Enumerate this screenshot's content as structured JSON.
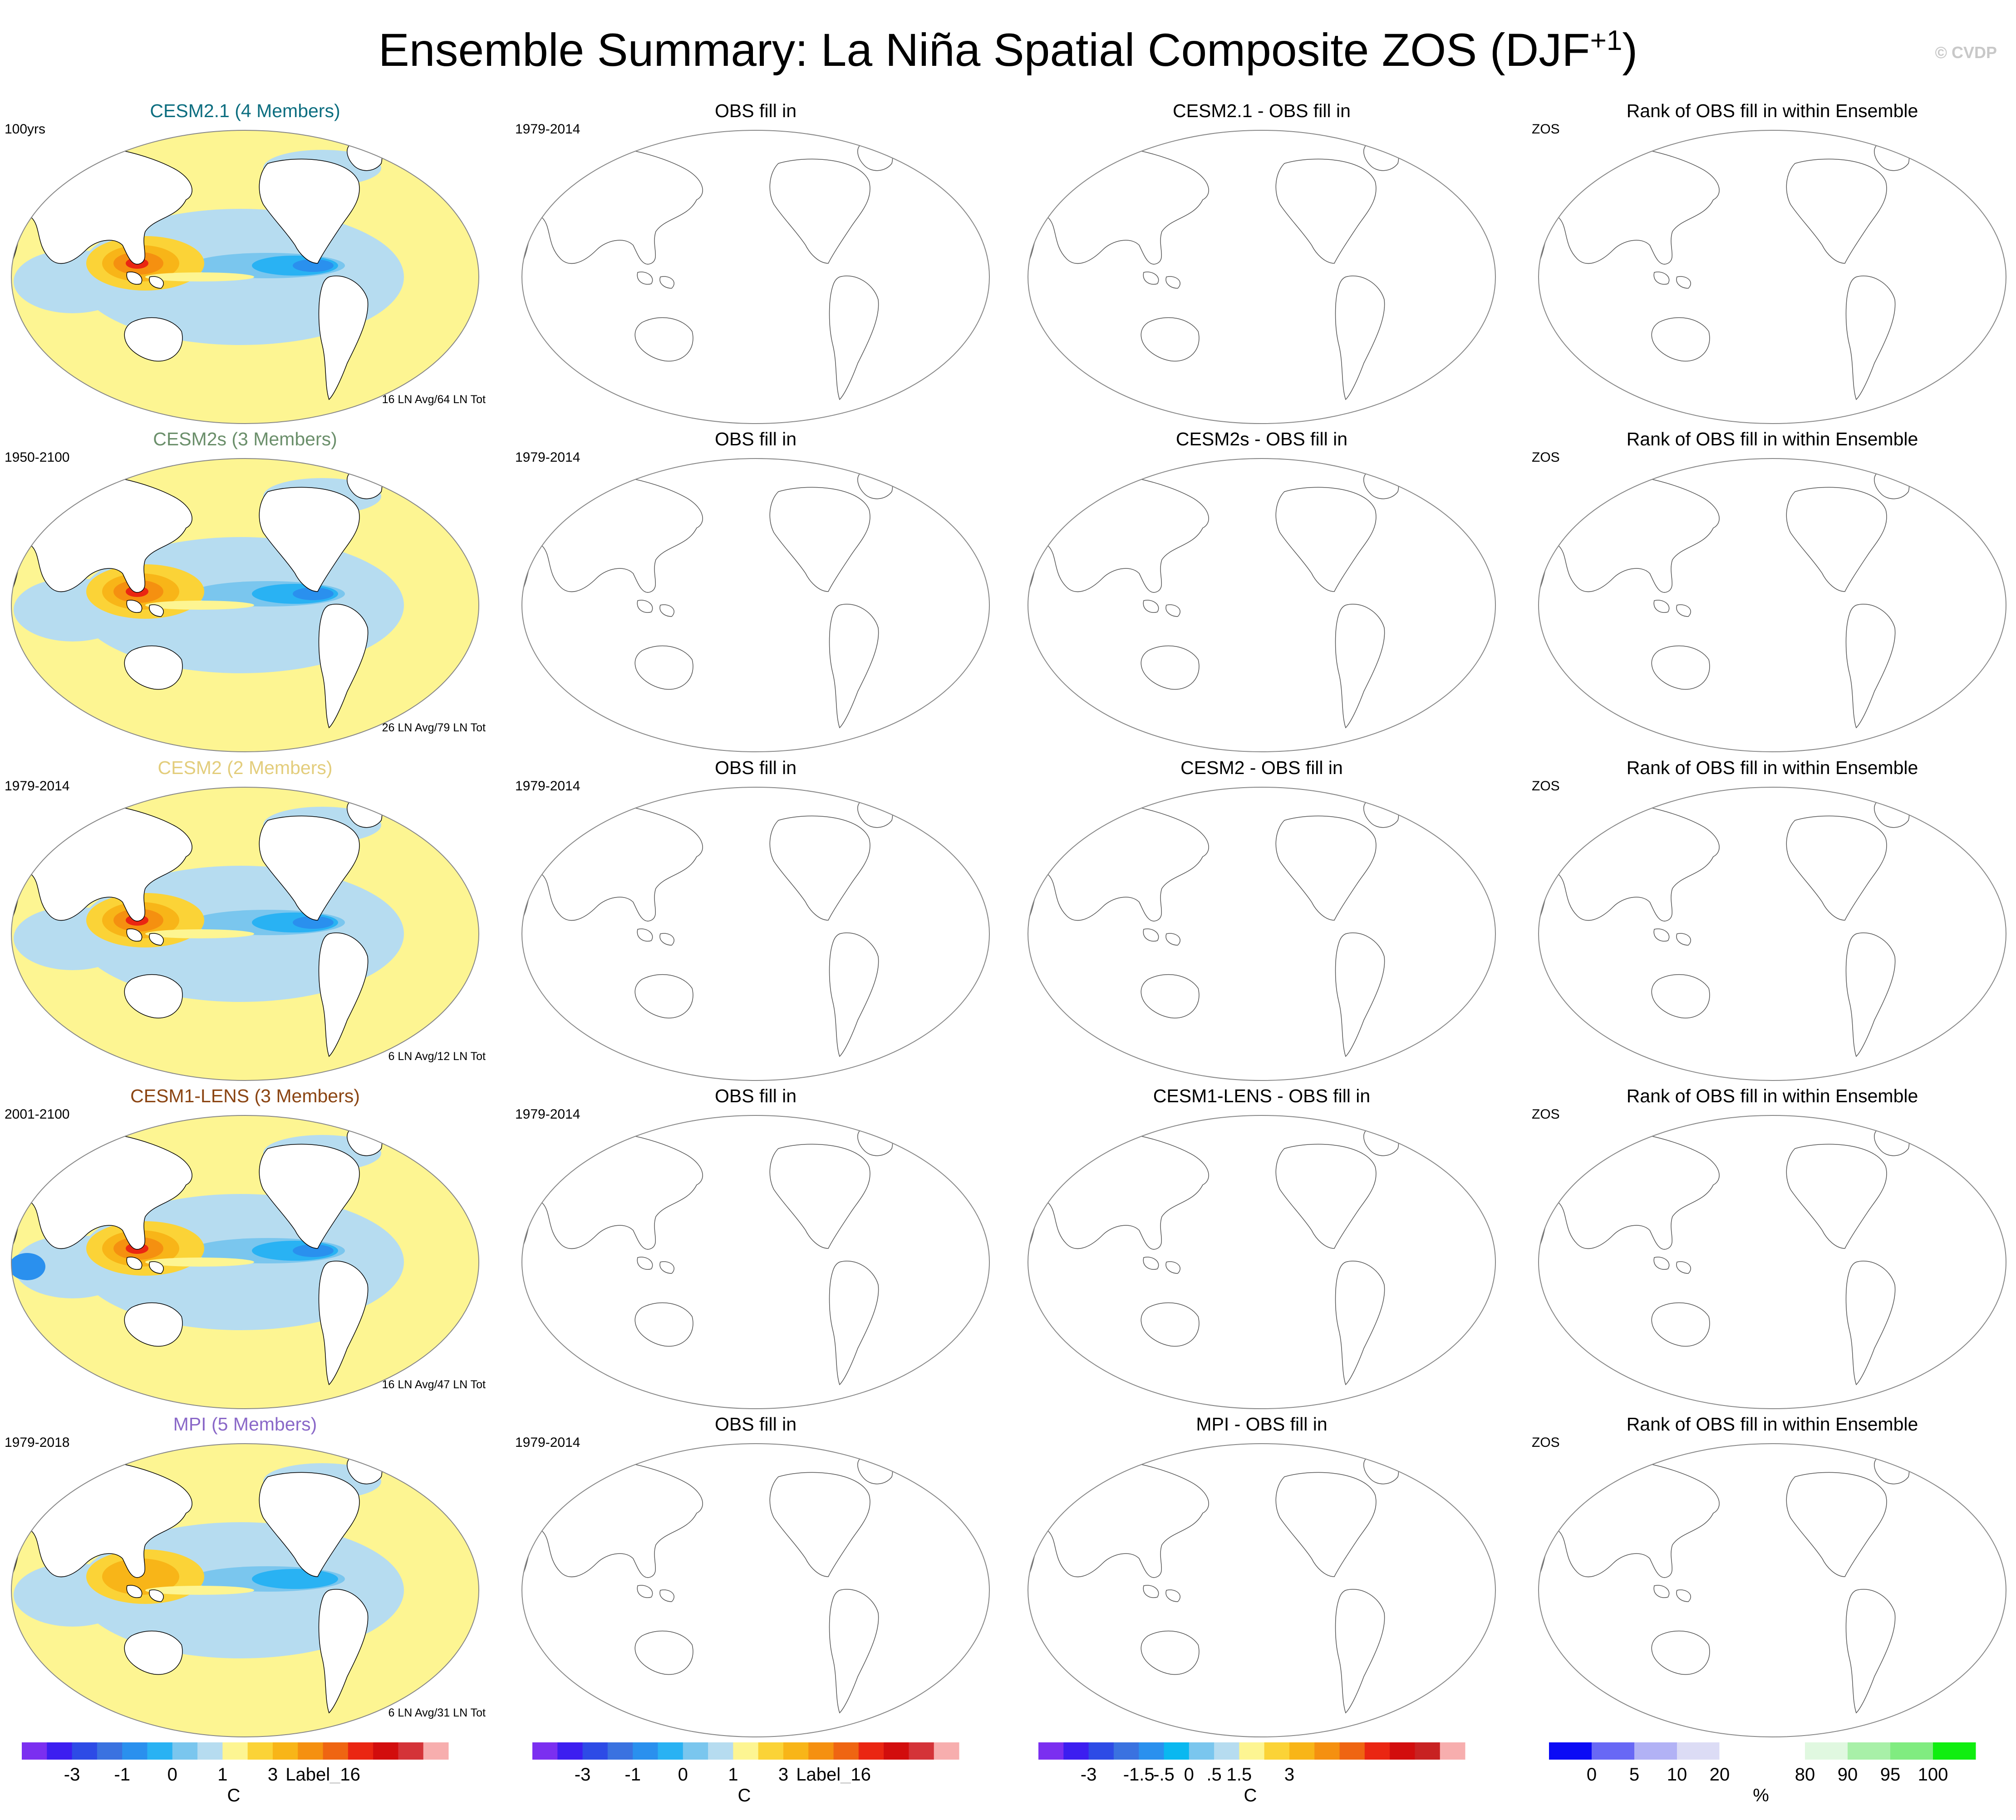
{
  "title": "Ensemble Summary: La Niña Spatial Composite ZOS (DJF",
  "title_sup": "+1",
  "title_close": ")",
  "watermark": "© CVDP",
  "rows": [
    {
      "model": "CESM2.1 (4 Members)",
      "model_color": "#0d6e80",
      "years": "100yrs",
      "count": "16 LN Avg/64 LN Tot",
      "obs_title": "OBS fill in",
      "obs_years": "1979-2014",
      "diff_title": "CESM2.1 - OBS fill in",
      "rank_title": "Rank of OBS fill in within Ensemble",
      "rank_label": "ZOS"
    },
    {
      "model": "CESM2s (3 Members)",
      "model_color": "#6b8f6b",
      "years": "1950-2100",
      "count": "26 LN Avg/79 LN Tot",
      "obs_title": "OBS fill in",
      "obs_years": "1979-2014",
      "diff_title": "CESM2s - OBS fill in",
      "rank_title": "Rank of OBS fill in within Ensemble",
      "rank_label": "ZOS"
    },
    {
      "model": "CESM2 (2 Members)",
      "model_color": "#e3cd7c",
      "years": "1979-2014",
      "count": "6 LN Avg/12 LN Tot",
      "obs_title": "OBS fill in",
      "obs_years": "1979-2014",
      "diff_title": "CESM2 - OBS fill in",
      "rank_title": "Rank of OBS fill in within Ensemble",
      "rank_label": "ZOS"
    },
    {
      "model": "CESM1-LENS (3 Members)",
      "model_color": "#8b4513",
      "years": "2001-2100",
      "count": "16 LN Avg/47 LN Tot",
      "obs_title": "OBS fill in",
      "obs_years": "1979-2014",
      "diff_title": "CESM1-LENS - OBS fill in",
      "rank_title": "Rank of OBS fill in within Ensemble",
      "rank_label": "ZOS"
    },
    {
      "model": "MPI (5 Members)",
      "model_color": "#8a68c8",
      "years": "1979-2018",
      "count": "6 LN Avg/31 LN Tot",
      "obs_title": "OBS fill in",
      "obs_years": "1979-2014",
      "diff_title": "MPI - OBS fill in",
      "rank_title": "Rank of OBS fill in within Ensemble",
      "rank_label": "ZOS"
    }
  ],
  "colorbars": [
    {
      "unit": "C",
      "colors": [
        "#7b2ff0",
        "#3c1ef0",
        "#2d4be6",
        "#3a72e0",
        "#2a90ee",
        "#29b2f3",
        "#7ac6ee",
        "#b6dcf0",
        "#fdf592",
        "#fbd337",
        "#f8b518",
        "#f59010",
        "#ef6512",
        "#ea2612",
        "#d20d0d",
        "#d43338",
        "#f7aeae"
      ],
      "ticks": [
        "-3",
        "-1",
        "0",
        "1",
        "3",
        "Label_16"
      ],
      "tick_pos": [
        2,
        4,
        6,
        8,
        10,
        12
      ]
    },
    {
      "unit": "C",
      "colors": [
        "#7b2ff0",
        "#3c1ef0",
        "#2d4be6",
        "#3a72e0",
        "#2a90ee",
        "#29b2f3",
        "#7ac6ee",
        "#b6dcf0",
        "#fdf592",
        "#fbd337",
        "#f8b518",
        "#f59010",
        "#ef6512",
        "#ea2612",
        "#d20d0d",
        "#d43338",
        "#f7aeae"
      ],
      "ticks": [
        "-3",
        "-1",
        "0",
        "1",
        "3",
        "Label_16"
      ],
      "tick_pos": [
        2,
        4,
        6,
        8,
        10,
        12
      ]
    },
    {
      "unit": "C",
      "colors": [
        "#7b2ff0",
        "#3c1ef0",
        "#2d4be6",
        "#3a72e0",
        "#2a90ee",
        "#0ab8f0",
        "#7ac6ee",
        "#b6dcf0",
        "#fdf592",
        "#fbd337",
        "#f8b518",
        "#f59010",
        "#ef6512",
        "#ea2612",
        "#d20d0d",
        "#c82222",
        "#f7aeae"
      ],
      "ticks": [
        "-3",
        "-1.5",
        "-.5",
        "0",
        ".5",
        "1.5",
        "3"
      ],
      "tick_pos": [
        2,
        4,
        5,
        6,
        7,
        8,
        10
      ]
    },
    {
      "unit": "%",
      "colors": [
        "#0b0bf5",
        "#6868f5",
        "#b2b2f5",
        "#dcdcf5",
        "#ffffff",
        "#ffffff",
        "#e0f8e0",
        "#a8f0a8",
        "#80ec80",
        "#10ee10"
      ],
      "ticks": [
        "0",
        "5",
        "10",
        "20",
        "80",
        "90",
        "95",
        "100"
      ],
      "tick_pos": [
        1,
        2,
        3,
        4,
        6,
        7,
        8,
        9
      ]
    }
  ]
}
